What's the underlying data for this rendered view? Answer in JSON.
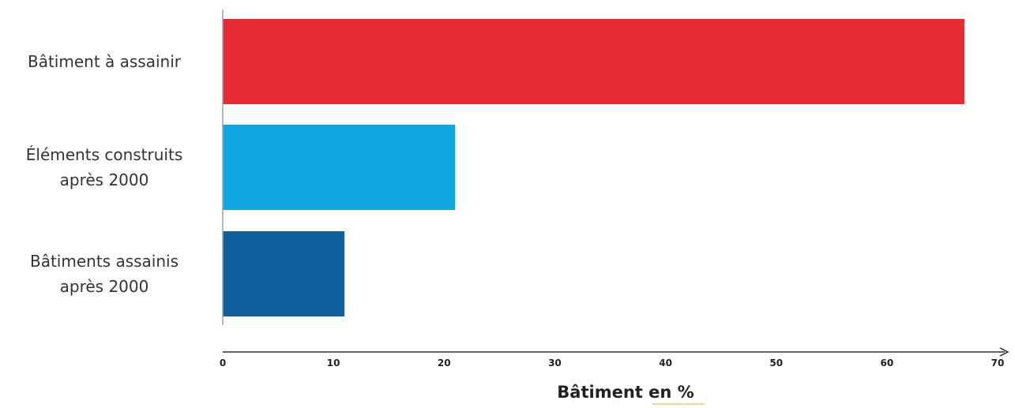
{
  "chart_data": {
    "type": "bar",
    "orientation": "horizontal",
    "categories": [
      [
        "Bâtiment à assainir"
      ],
      [
        "Éléments construits",
        "après 2000"
      ],
      [
        "Bâtiments assainis",
        "après 2000"
      ]
    ],
    "values": [
      67,
      21,
      11
    ],
    "colors": [
      "#e52a32",
      "#0fa7e3",
      "#10609f"
    ],
    "xlabel": "Bâtiment en %",
    "xlim": [
      0,
      70
    ],
    "xticks": [
      "0",
      "10",
      "20",
      "30",
      "40",
      "50",
      "60",
      "70"
    ],
    "grid": false
  }
}
